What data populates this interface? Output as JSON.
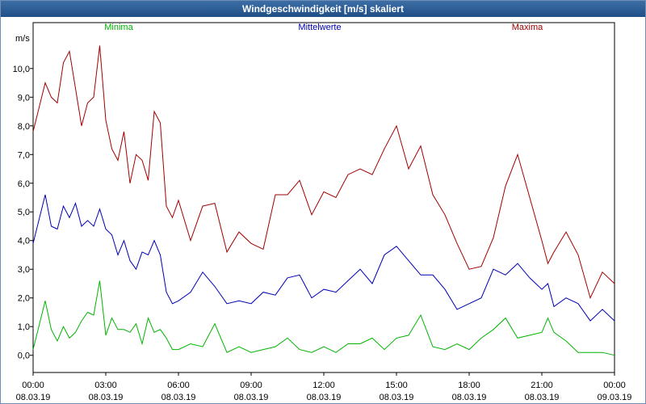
{
  "window": {
    "title": "Windgeschwindigkeit [m/s] skaliert"
  },
  "colors": {
    "min": "#00b400",
    "mean": "#0000b4",
    "max": "#a00000",
    "title_bg": "#2a5a90"
  },
  "chart_data": {
    "type": "line",
    "title": "Windgeschwindigkeit [m/s] skaliert",
    "ylabel": "m/s",
    "ylim": [
      -0.6,
      11.6
    ],
    "yticks": [
      0.0,
      1.0,
      2.0,
      3.0,
      4.0,
      5.0,
      6.0,
      7.0,
      8.0,
      9.0,
      10.0
    ],
    "ytick_labels": [
      "0,0",
      "1,0",
      "2,0",
      "3,0",
      "4,0",
      "5,0",
      "6,0",
      "7,0",
      "8,0",
      "9,0",
      "10,0"
    ],
    "xlim": [
      0,
      24
    ],
    "xticks": [
      0,
      3,
      6,
      9,
      12,
      15,
      18,
      21,
      24
    ],
    "xtick_time_labels": [
      "00:00",
      "03:00",
      "06:00",
      "09:00",
      "12:00",
      "15:00",
      "18:00",
      "21:00",
      "00:00"
    ],
    "xtick_date_labels": [
      "08.03.19",
      "08.03.19",
      "08.03.19",
      "08.03.19",
      "08.03.19",
      "08.03.19",
      "08.03.19",
      "08.03.19",
      "09.03.19"
    ],
    "grid": true,
    "legend_position": "top",
    "series": [
      {
        "name": "Minima",
        "x": [
          0,
          0.5,
          0.75,
          1,
          1.25,
          1.5,
          1.75,
          2,
          2.25,
          2.5,
          2.75,
          3,
          3.25,
          3.5,
          3.75,
          4,
          4.25,
          4.5,
          4.75,
          5,
          5.25,
          5.5,
          5.75,
          6,
          6.5,
          7,
          7.5,
          8,
          8.5,
          9,
          9.5,
          10,
          10.5,
          11,
          11.5,
          12,
          12.5,
          13,
          13.5,
          14,
          14.5,
          15,
          15.5,
          16,
          16.5,
          17,
          17.5,
          18,
          18.5,
          19,
          19.5,
          20,
          20.5,
          21,
          21.25,
          21.5,
          22,
          22.5,
          23,
          23.5,
          24
        ],
        "values": [
          0.2,
          1.9,
          0.9,
          0.5,
          1.0,
          0.6,
          0.8,
          1.2,
          1.5,
          1.4,
          2.6,
          0.7,
          1.3,
          0.9,
          0.9,
          0.8,
          1.1,
          0.4,
          1.3,
          0.8,
          0.9,
          0.6,
          0.2,
          0.2,
          0.4,
          0.3,
          1.1,
          0.1,
          0.3,
          0.1,
          0.2,
          0.3,
          0.6,
          0.2,
          0.1,
          0.3,
          0.1,
          0.4,
          0.4,
          0.6,
          0.2,
          0.6,
          0.7,
          1.4,
          0.3,
          0.2,
          0.4,
          0.2,
          0.6,
          0.9,
          1.3,
          0.6,
          0.7,
          0.8,
          1.3,
          0.8,
          0.5,
          0.1,
          0.1,
          0.1,
          0.0
        ]
      },
      {
        "name": "Mittelwerte",
        "x": [
          0,
          0.5,
          0.75,
          1,
          1.25,
          1.5,
          1.75,
          2,
          2.25,
          2.5,
          2.75,
          3,
          3.25,
          3.5,
          3.75,
          4,
          4.25,
          4.5,
          4.75,
          5,
          5.25,
          5.5,
          5.75,
          6,
          6.5,
          7,
          7.5,
          8,
          8.5,
          9,
          9.5,
          10,
          10.5,
          11,
          11.5,
          12,
          12.5,
          13,
          13.5,
          14,
          14.5,
          15,
          15.5,
          16,
          16.5,
          17,
          17.5,
          18,
          18.5,
          19,
          19.5,
          20,
          20.5,
          21,
          21.25,
          21.5,
          22,
          22.5,
          23,
          23.5,
          24
        ],
        "values": [
          3.9,
          5.6,
          4.5,
          4.4,
          5.2,
          4.8,
          5.3,
          4.5,
          4.7,
          4.5,
          5.1,
          4.4,
          4.2,
          3.5,
          4.0,
          3.3,
          3.0,
          3.6,
          3.5,
          4.0,
          3.5,
          2.2,
          1.8,
          1.9,
          2.2,
          2.9,
          2.4,
          1.8,
          1.9,
          1.8,
          2.2,
          2.1,
          2.7,
          2.8,
          2.0,
          2.3,
          2.2,
          2.6,
          3.0,
          2.5,
          3.5,
          3.8,
          3.3,
          2.8,
          2.8,
          2.3,
          1.6,
          1.8,
          2.0,
          3.0,
          2.8,
          3.2,
          2.7,
          2.3,
          2.5,
          1.7,
          2.0,
          1.8,
          1.2,
          1.6,
          1.2
        ]
      },
      {
        "name": "Maxima",
        "x": [
          0,
          0.5,
          0.75,
          1,
          1.25,
          1.5,
          1.75,
          2,
          2.25,
          2.5,
          2.75,
          3,
          3.25,
          3.5,
          3.75,
          4,
          4.25,
          4.5,
          4.75,
          5,
          5.25,
          5.5,
          5.75,
          6,
          6.5,
          7,
          7.5,
          8,
          8.5,
          9,
          9.5,
          10,
          10.5,
          11,
          11.5,
          12,
          12.5,
          13,
          13.5,
          14,
          14.5,
          15,
          15.5,
          16,
          16.5,
          17,
          17.5,
          18,
          18.5,
          19,
          19.5,
          20,
          20.5,
          21,
          21.25,
          21.5,
          22,
          22.5,
          23,
          23.5,
          24
        ],
        "values": [
          7.8,
          9.5,
          9.0,
          8.8,
          10.2,
          10.6,
          9.3,
          8.0,
          8.8,
          9.0,
          10.8,
          8.2,
          7.2,
          6.8,
          7.8,
          6.0,
          7.0,
          6.8,
          6.1,
          8.5,
          8.1,
          5.2,
          4.8,
          5.4,
          4.0,
          5.2,
          5.3,
          3.6,
          4.3,
          3.9,
          3.7,
          5.6,
          5.6,
          6.1,
          4.9,
          5.7,
          5.5,
          6.3,
          6.5,
          6.3,
          7.2,
          8.0,
          6.5,
          7.3,
          5.6,
          4.9,
          3.9,
          3.0,
          3.1,
          4.1,
          5.9,
          7.0,
          5.5,
          4.0,
          3.2,
          3.6,
          4.3,
          3.5,
          2.0,
          2.9,
          2.5
        ]
      }
    ]
  }
}
